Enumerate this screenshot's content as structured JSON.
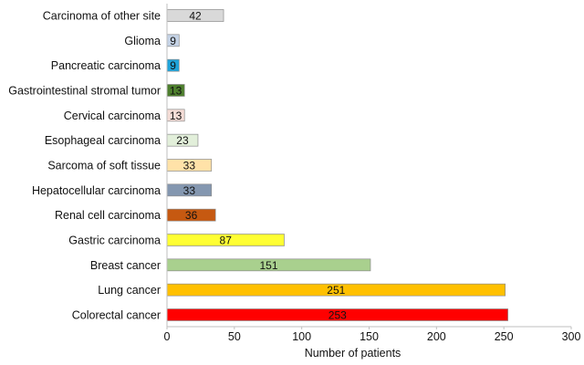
{
  "chart_data": {
    "type": "bar",
    "orientation": "horizontal",
    "title": "",
    "xlabel": "Number of patients",
    "ylabel": "",
    "xlim": [
      0,
      300
    ],
    "xticks": [
      0,
      50,
      100,
      150,
      200,
      250,
      300
    ],
    "grid": false,
    "legend": "none",
    "categories": [
      "Carcinoma of other site",
      "Glioma",
      "Pancreatic carcinoma",
      "Gastrointestinal stromal tumor",
      "Cervical carcinoma",
      "Esophageal carcinoma",
      "Sarcoma of soft tissue",
      "Hepatocellular carcinoma",
      "Renal cell carcinoma",
      "Gastric carcinoma",
      "Breast cancer",
      "Lung cancer",
      "Colorectal cancer"
    ],
    "values": [
      42,
      9,
      9,
      13,
      13,
      23,
      33,
      33,
      36,
      87,
      151,
      251,
      253
    ],
    "colors": [
      "#d9d9d9",
      "#c5d3e6",
      "#1fa3d9",
      "#4e7f2e",
      "#f4dcd6",
      "#e2efda",
      "#ffe2a8",
      "#8497b0",
      "#c65911",
      "#ffff33",
      "#a9d08e",
      "#ffc000",
      "#ff0000"
    ],
    "data_labels": [
      "42",
      "9",
      "9",
      "13",
      "13",
      "23",
      "33",
      "33",
      "36",
      "87",
      "151",
      "251",
      "253"
    ]
  }
}
